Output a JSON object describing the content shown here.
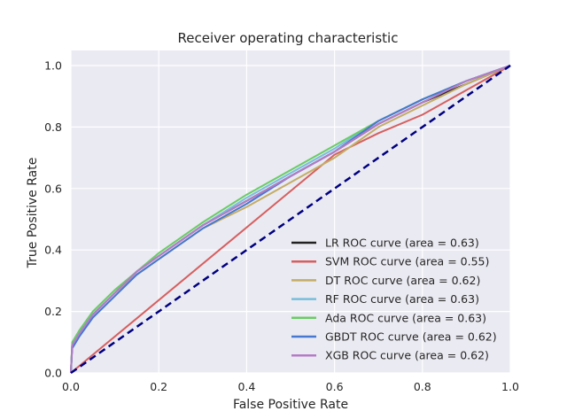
{
  "chart_data": {
    "type": "line",
    "title": "Receiver operating characteristic",
    "xlabel": "False Positive Rate",
    "ylabel": "True Positive Rate",
    "xlim": [
      0.0,
      1.0
    ],
    "ylim": [
      0.0,
      1.0
    ],
    "xticks": [
      "0.0",
      "0.2",
      "0.4",
      "0.6",
      "0.8",
      "1.0"
    ],
    "yticks": [
      "0.0",
      "0.2",
      "0.4",
      "0.6",
      "0.8",
      "1.0"
    ],
    "grid": true,
    "legend_position": "lower-right",
    "background_color": "#eaeaf2",
    "series": [
      {
        "name": "LR ROC curve (area = 0.63)",
        "color": "#222222",
        "x": [
          0,
          0.003,
          0.02,
          0.05,
          0.1,
          0.15,
          0.2,
          0.3,
          0.4,
          0.5,
          0.6,
          0.7,
          0.8,
          0.9,
          1.0
        ],
        "y": [
          0,
          0.09,
          0.13,
          0.19,
          0.26,
          0.33,
          0.38,
          0.48,
          0.56,
          0.64,
          0.72,
          0.81,
          0.88,
          0.94,
          1.0
        ]
      },
      {
        "name": "SVM ROC curve (area = 0.55)",
        "color": "#d65f5f",
        "x": [
          0,
          0.6,
          0.7,
          0.8,
          0.9,
          1.0
        ],
        "y": [
          0,
          0.71,
          0.78,
          0.84,
          0.92,
          1.0
        ]
      },
      {
        "name": "DT ROC curve (area = 0.62)",
        "color": "#c4ad66",
        "x": [
          0,
          0.003,
          0.02,
          0.05,
          0.1,
          0.15,
          0.2,
          0.3,
          0.4,
          0.5,
          0.6,
          0.7,
          0.8,
          0.9,
          1.0
        ],
        "y": [
          0,
          0.09,
          0.13,
          0.19,
          0.26,
          0.32,
          0.37,
          0.47,
          0.54,
          0.62,
          0.7,
          0.8,
          0.87,
          0.94,
          1.0
        ]
      },
      {
        "name": "RF ROC curve (area = 0.63)",
        "color": "#77bedb",
        "x": [
          0,
          0.003,
          0.02,
          0.05,
          0.1,
          0.15,
          0.2,
          0.3,
          0.4,
          0.5,
          0.6,
          0.7,
          0.8,
          0.9,
          1.0
        ],
        "y": [
          0,
          0.09,
          0.13,
          0.19,
          0.26,
          0.33,
          0.38,
          0.48,
          0.57,
          0.65,
          0.73,
          0.82,
          0.89,
          0.95,
          1.0
        ]
      },
      {
        "name": "Ada ROC curve (area = 0.63)",
        "color": "#6acc65",
        "x": [
          0,
          0.003,
          0.02,
          0.05,
          0.1,
          0.15,
          0.2,
          0.3,
          0.4,
          0.5,
          0.6,
          0.7,
          0.8,
          0.9,
          1.0
        ],
        "y": [
          0,
          0.1,
          0.14,
          0.2,
          0.27,
          0.33,
          0.39,
          0.49,
          0.58,
          0.66,
          0.74,
          0.82,
          0.89,
          0.95,
          1.0
        ]
      },
      {
        "name": "GBDT ROC curve (area = 0.62)",
        "color": "#4878cf",
        "x": [
          0,
          0.003,
          0.02,
          0.05,
          0.1,
          0.15,
          0.2,
          0.3,
          0.4,
          0.5,
          0.6,
          0.7,
          0.8,
          0.9,
          1.0
        ],
        "y": [
          0,
          0.08,
          0.12,
          0.18,
          0.25,
          0.32,
          0.37,
          0.47,
          0.55,
          0.64,
          0.72,
          0.82,
          0.89,
          0.95,
          1.0
        ]
      },
      {
        "name": "XGB ROC curve (area = 0.62)",
        "color": "#b47cc7",
        "x": [
          0,
          0.003,
          0.02,
          0.05,
          0.1,
          0.15,
          0.2,
          0.3,
          0.4,
          0.5,
          0.6,
          0.7,
          0.8,
          0.9,
          1.0
        ],
        "y": [
          0,
          0.09,
          0.13,
          0.19,
          0.26,
          0.33,
          0.38,
          0.48,
          0.56,
          0.64,
          0.72,
          0.81,
          0.88,
          0.95,
          1.0
        ]
      }
    ],
    "reference_line": {
      "color": "#000080",
      "style": "dashed",
      "x": [
        0,
        1
      ],
      "y": [
        0,
        1
      ]
    }
  }
}
